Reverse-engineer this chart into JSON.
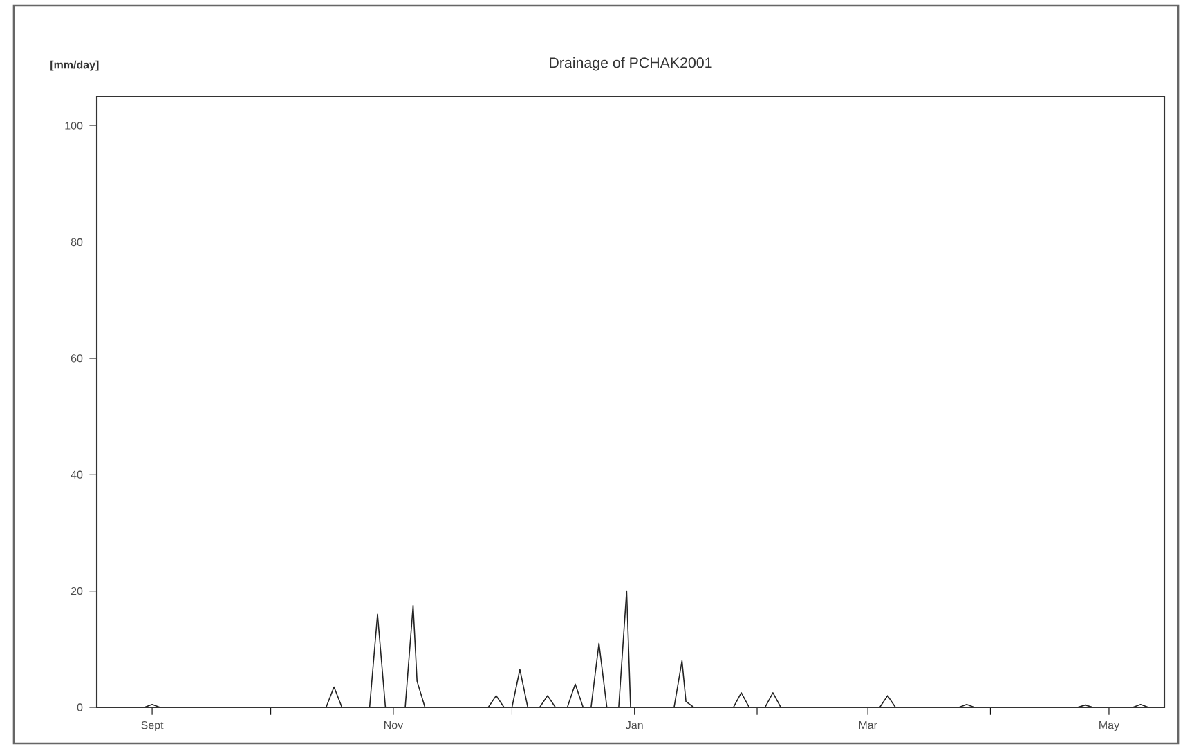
{
  "chart_data": {
    "type": "line",
    "title": "Drainage of PCHAK2001",
    "ylabel": "[mm/day]",
    "x": [
      "2000-08-22",
      "2000-08-30",
      "2000-09-01",
      "2000-09-03",
      "2000-10-15",
      "2000-10-17",
      "2000-10-19",
      "2000-10-26",
      "2000-10-28",
      "2000-10-30",
      "2000-11-04",
      "2000-11-06",
      "2000-11-07",
      "2000-11-09",
      "2000-11-25",
      "2000-11-27",
      "2000-11-29",
      "2000-12-01",
      "2000-12-03",
      "2000-12-05",
      "2000-12-08",
      "2000-12-10",
      "2000-12-12",
      "2000-12-15",
      "2000-12-17",
      "2000-12-19",
      "2000-12-21",
      "2000-12-23",
      "2000-12-25",
      "2000-12-28",
      "2000-12-30",
      "2000-12-31",
      "2001-01-11",
      "2001-01-13",
      "2001-01-14",
      "2001-01-16",
      "2001-01-26",
      "2001-01-28",
      "2001-01-30",
      "2001-02-03",
      "2001-02-05",
      "2001-02-07",
      "2001-03-04",
      "2001-03-06",
      "2001-03-08",
      "2001-03-24",
      "2001-03-26",
      "2001-03-28",
      "2001-04-23",
      "2001-04-25",
      "2001-04-27",
      "2001-05-07",
      "2001-05-09",
      "2001-05-11"
    ],
    "series": [
      {
        "color": "#222222",
        "values": [
          0,
          0,
          0.5,
          0,
          0,
          3.5,
          0,
          0,
          16,
          0,
          0,
          17.5,
          4.5,
          0,
          0,
          2,
          0,
          0,
          6.5,
          0,
          0,
          2,
          0,
          0,
          4,
          0,
          0,
          11,
          0,
          0,
          20,
          0,
          0,
          8,
          1,
          0,
          0,
          2.5,
          0,
          0,
          2.5,
          0,
          0,
          2,
          0,
          0,
          0.5,
          0,
          0,
          0.4,
          0,
          0,
          0.5,
          0
        ]
      }
    ],
    "xlim": [
      "2000-08-18",
      "2001-05-15"
    ],
    "xticks": [
      {
        "value": "2000-09-01",
        "label": "Sept"
      },
      {
        "value": "2000-10-01",
        "label": null
      },
      {
        "value": "2000-11-01",
        "label": "Nov"
      },
      {
        "value": "2000-12-01",
        "label": null
      },
      {
        "value": "2001-01-01",
        "label": "Jan"
      },
      {
        "value": "2001-02-01",
        "label": null
      },
      {
        "value": "2001-03-01",
        "label": "Mar"
      },
      {
        "value": "2001-04-01",
        "label": null
      },
      {
        "value": "2001-05-01",
        "label": "May"
      }
    ],
    "ylim": [
      0,
      105
    ],
    "yticks": [
      0,
      20,
      40,
      60,
      80,
      100
    ]
  }
}
